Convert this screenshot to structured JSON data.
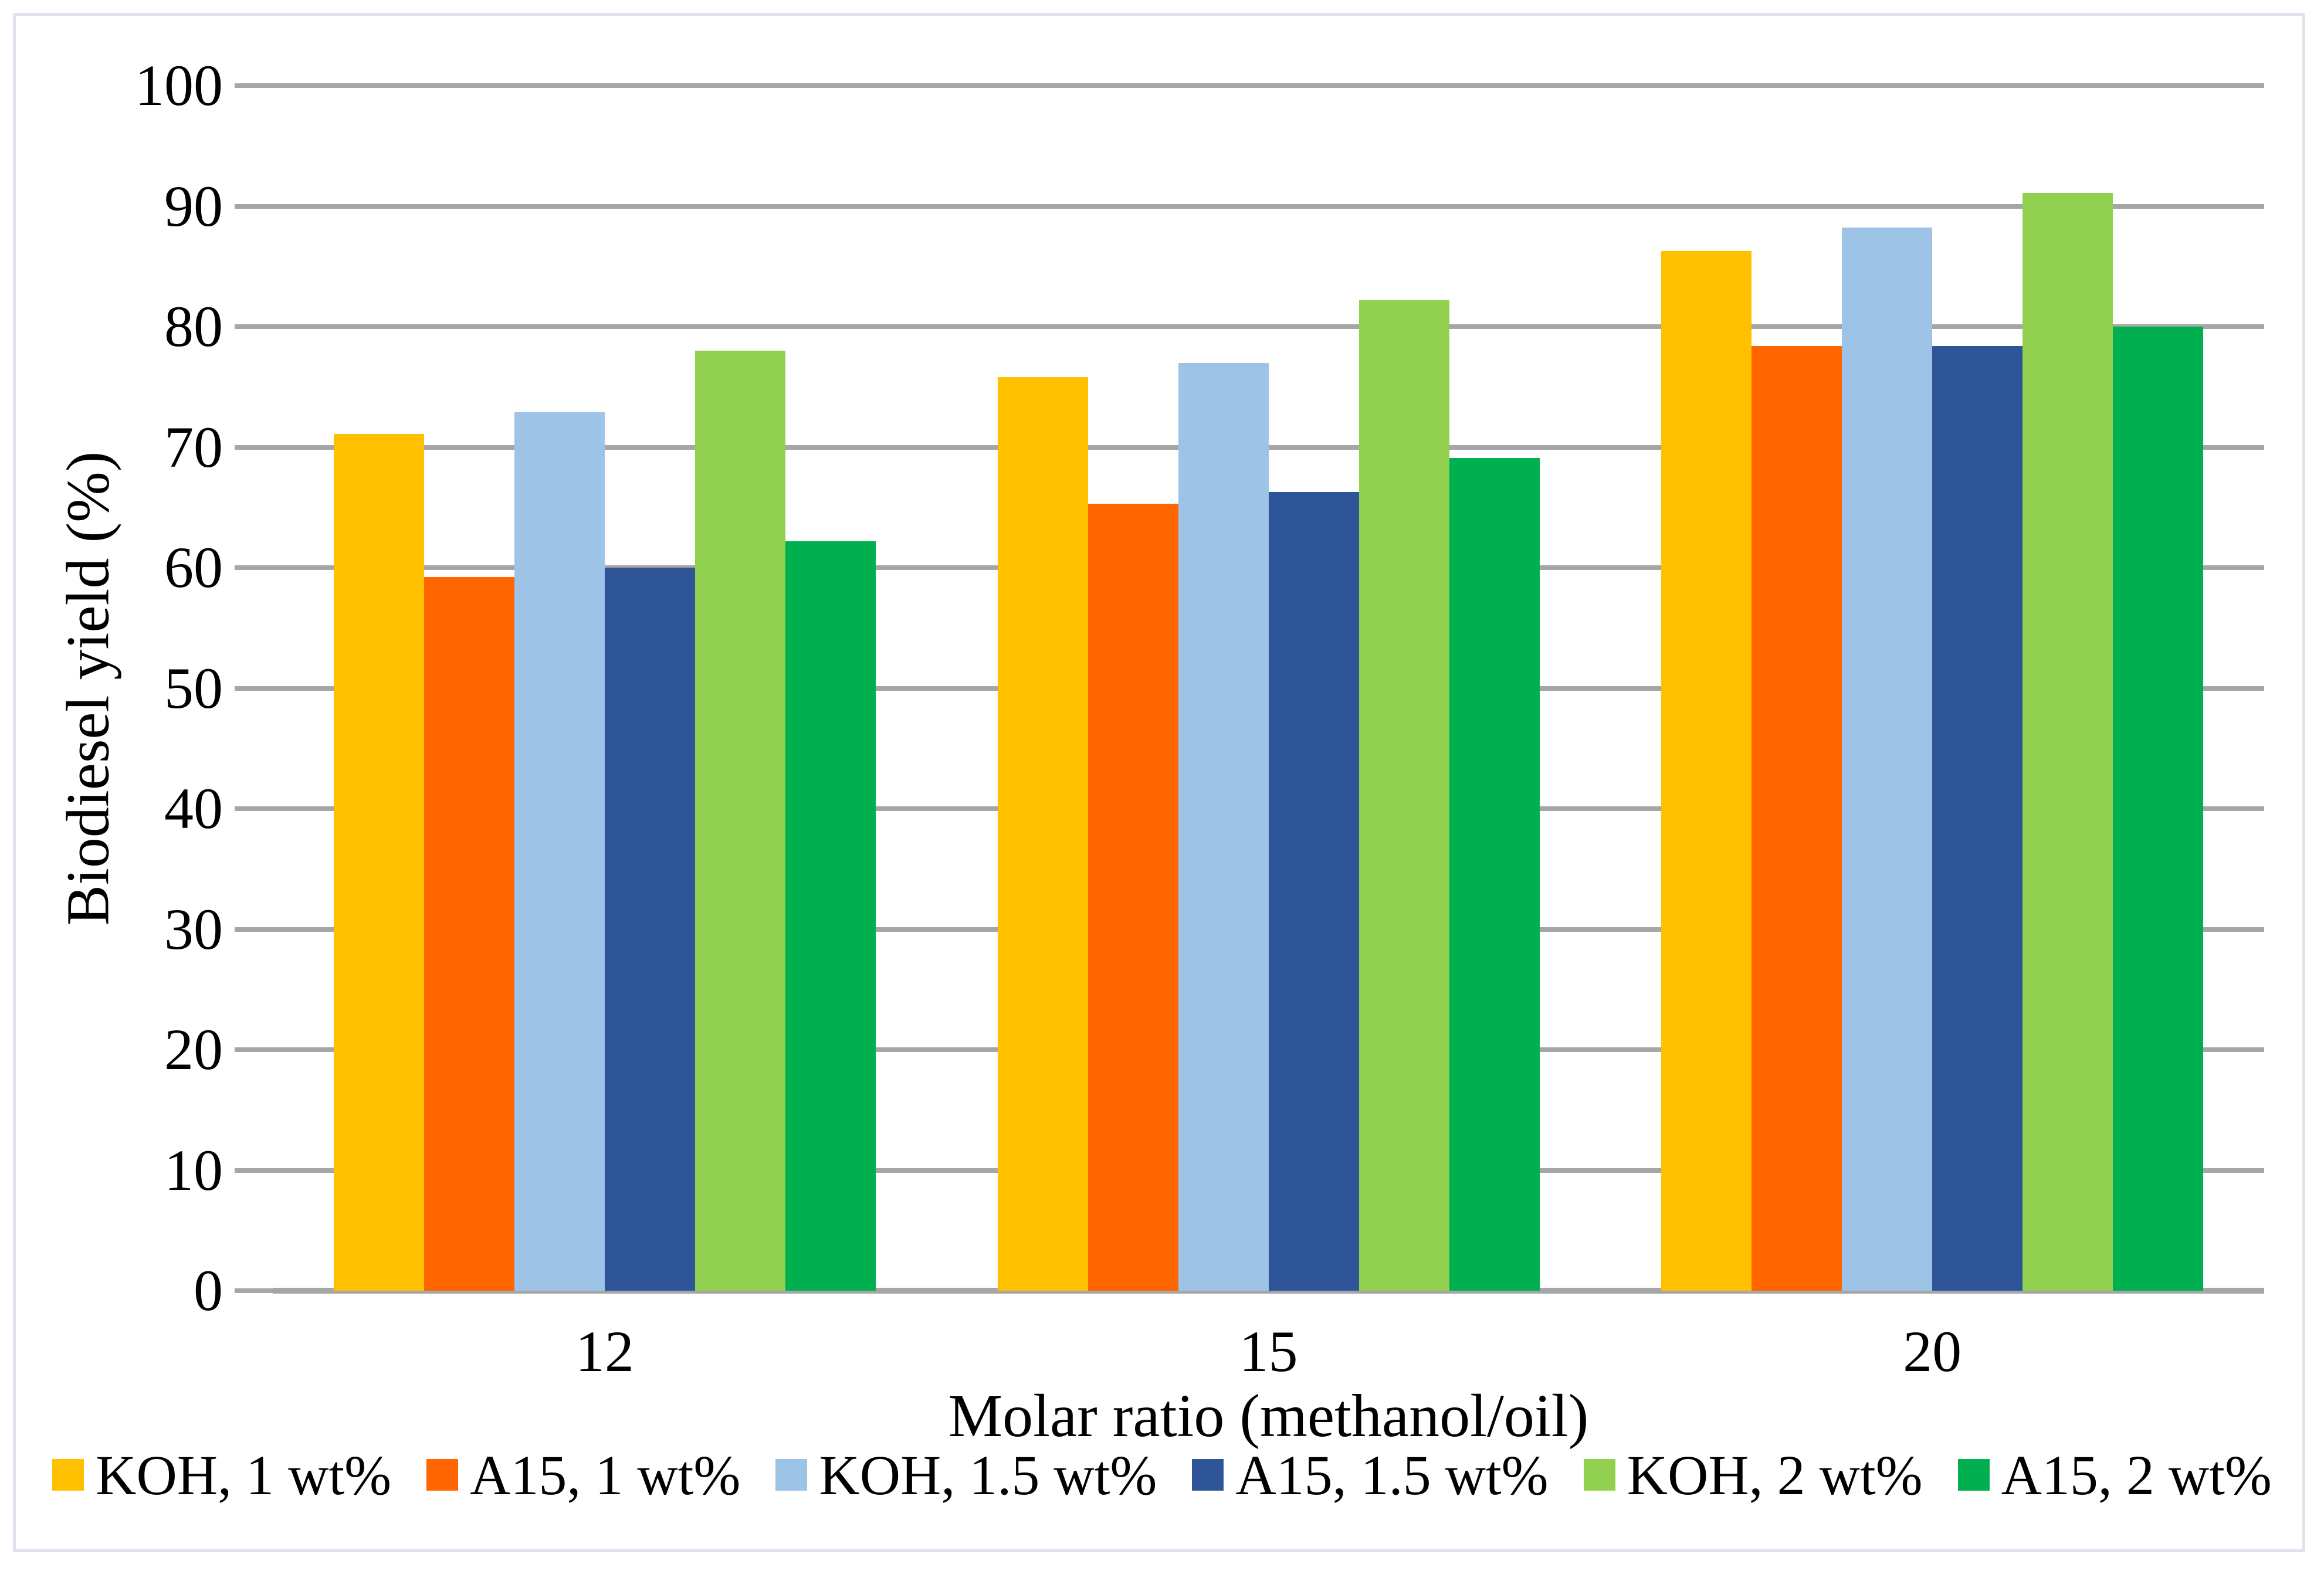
{
  "chart_data": {
    "type": "bar",
    "title": "",
    "xlabel": "Molar ratio (methanol/oil)",
    "ylabel": "Biodiesel yield (%)",
    "categories": [
      "12",
      "15",
      "20"
    ],
    "series": [
      {
        "name": "KOH, 1 wt%",
        "color": "#FFC000",
        "values": [
          71.1,
          75.8,
          86.3
        ]
      },
      {
        "name": "A15, 1 wt%",
        "color": "#FF6600",
        "values": [
          59.2,
          65.3,
          78.4
        ]
      },
      {
        "name": "KOH, 1.5 wt%",
        "color": "#9DC3E6",
        "values": [
          72.9,
          77.0,
          88.2
        ]
      },
      {
        "name": "A15, 1.5 wt%",
        "color": "#2E5597",
        "values": [
          60.0,
          66.3,
          78.4
        ]
      },
      {
        "name": "KOH, 2 wt%",
        "color": "#92D050",
        "values": [
          78.0,
          82.2,
          91.1
        ]
      },
      {
        "name": "A15, 2 wt%",
        "color": "#00B050",
        "values": [
          62.2,
          69.1,
          80.0
        ]
      }
    ],
    "ylim": [
      0,
      100
    ],
    "yticks": [
      0,
      10,
      20,
      30,
      40,
      50,
      60,
      70,
      80,
      90,
      100
    ],
    "grid": true,
    "legend_position": "bottom"
  },
  "colors": {
    "gridline": "#A6A6A6",
    "axis_text": "#000000",
    "frame_border": "#DEE3ED",
    "background": "#FFFFFF"
  }
}
